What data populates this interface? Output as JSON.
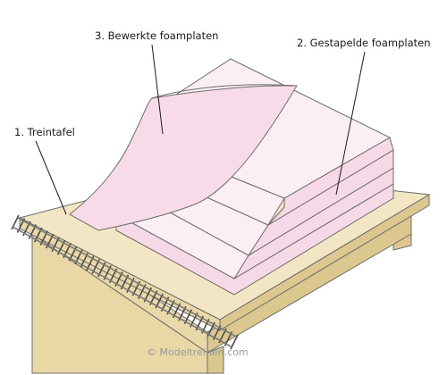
{
  "labels": {
    "table": "1. Treintafel",
    "stacked": "2. Gestapelde foamplaten",
    "worked": "3. Bewerkte foamplaten"
  },
  "credit": "© Modeltreinen.com",
  "colors": {
    "table_top": "#f3e6c4",
    "table_side_front": "#e9d7a6",
    "table_side_right": "#dcc78f",
    "foam_top": "#fbeef4",
    "foam_side": "#f6d9e6",
    "foam_right": "#efc9da",
    "outline": "#6d6d6d",
    "rail": "#7a7a7a",
    "tie": "#4a4a4a"
  }
}
